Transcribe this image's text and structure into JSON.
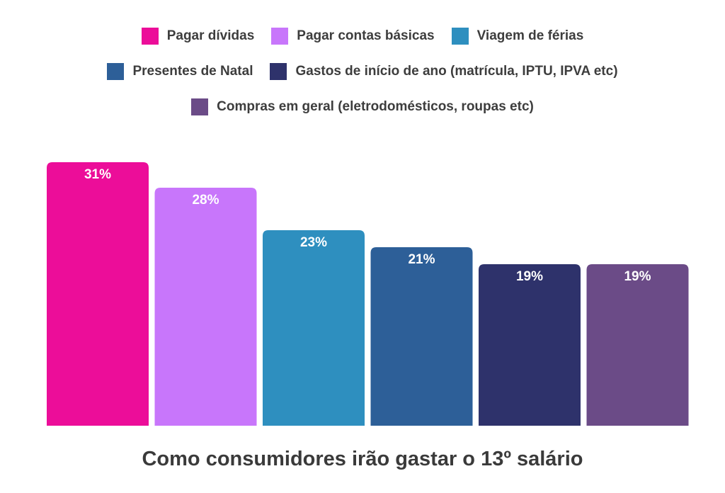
{
  "chart_data": {
    "type": "bar",
    "title": "Como consumidores irão gastar o 13º salário",
    "unit": "%",
    "legend_position": "top",
    "grid": false,
    "ylim": [
      0,
      35
    ],
    "series": [
      {
        "name": "Pagar dívidas",
        "value": 31,
        "label": "31%",
        "color": "#ec0d99"
      },
      {
        "name": "Pagar contas básicas",
        "value": 28,
        "label": "28%",
        "color": "#c876fb"
      },
      {
        "name": "Viagem de férias",
        "value": 23,
        "label": "23%",
        "color": "#2e8fbf"
      },
      {
        "name": "Presentes de Natal",
        "value": 21,
        "label": "21%",
        "color": "#2d5f98"
      },
      {
        "name": "Gastos de início de ano (matrícula, IPTU, IPVA etc)",
        "value": 19,
        "label": "19%",
        "color": "#2e326b"
      },
      {
        "name": "Compras em geral (eletrodomésticos, roupas etc)",
        "value": 19,
        "label": "19%",
        "color": "#6b4b87"
      }
    ]
  }
}
